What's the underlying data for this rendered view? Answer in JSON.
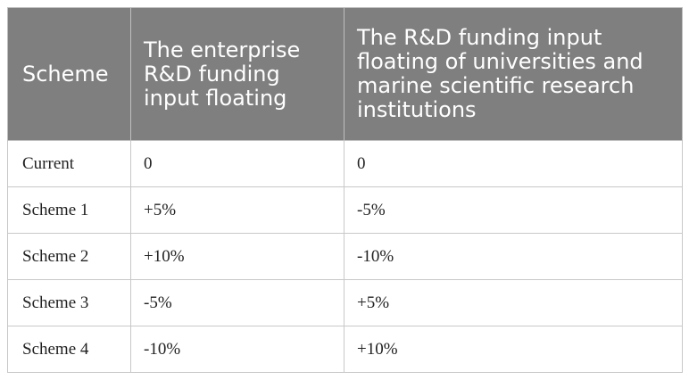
{
  "table": {
    "headers": [
      "Scheme",
      "The enterprise R&D funding input floating",
      "The R&D funding input floating of universities and marine scientific research institutions"
    ],
    "rows": [
      [
        "Current",
        "0",
        "0"
      ],
      [
        "Scheme 1",
        "+5%",
        "-5%"
      ],
      [
        "Scheme 2",
        "+10%",
        "-10%"
      ],
      [
        "Scheme 3",
        "-5%",
        "+5%"
      ],
      [
        "Scheme 4",
        "-10%",
        "+10%"
      ]
    ]
  }
}
